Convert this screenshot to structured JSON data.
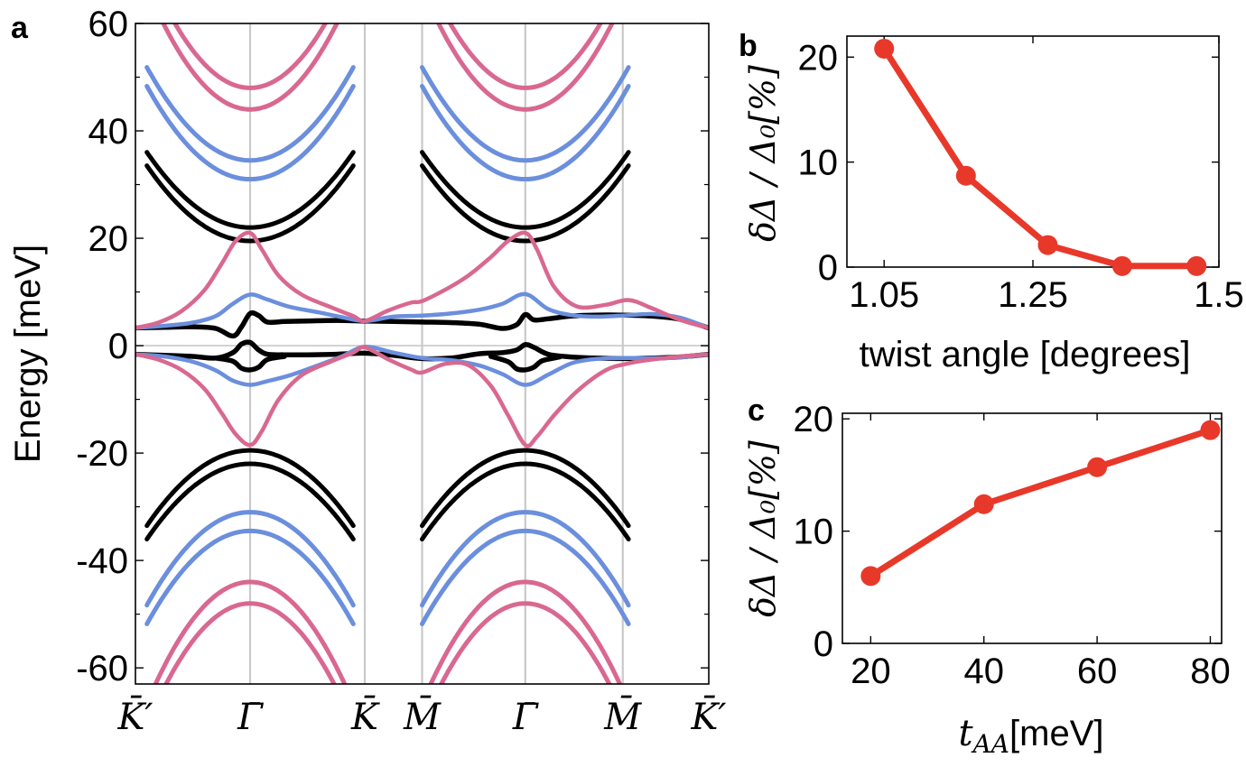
{
  "colors": {
    "black": "#000000",
    "blue": "#6b8fdd",
    "pink": "#d96890",
    "red": "#e8382a",
    "grid": "#c9c9c9"
  },
  "chart_data": [
    {
      "id": "a",
      "panel_label": "a",
      "type": "line",
      "title": "",
      "xlabel": "",
      "ylabel": "Energy [meV]",
      "ylim": [
        -63,
        60
      ],
      "yticks": [
        -60,
        -40,
        -20,
        0,
        20,
        40,
        60
      ],
      "ytick_labels": [
        "-60",
        "-40",
        "-20",
        "0",
        "20",
        "40",
        "60"
      ],
      "xlim": [
        0,
        1
      ],
      "high_symmetry_points": [
        {
          "x": 0.0,
          "label": "K̄′"
        },
        {
          "x": 0.2,
          "label": "Γ̄"
        },
        {
          "x": 0.4,
          "label": "K̄"
        },
        {
          "x": 0.5,
          "label": "M̄"
        },
        {
          "x": 0.68,
          "label": "Γ̄"
        },
        {
          "x": 0.85,
          "label": "M̄"
        },
        {
          "x": 1.0,
          "label": "K̄′"
        }
      ],
      "series": [
        {
          "name": "black flat band (upper)",
          "color": "black",
          "x": [
            0,
            0.05,
            0.1,
            0.14,
            0.17,
            0.185,
            0.2,
            0.215,
            0.23,
            0.26,
            0.3,
            0.35,
            0.4,
            0.45,
            0.5,
            0.55,
            0.6,
            0.64,
            0.665,
            0.68,
            0.695,
            0.72,
            0.76,
            0.8,
            0.85,
            0.9,
            0.95,
            1.0
          ],
          "values": [
            3.3,
            3.4,
            3.5,
            3.2,
            1.8,
            3.5,
            6.0,
            5.6,
            4.4,
            4.5,
            4.6,
            4.7,
            4.6,
            4.5,
            4.4,
            4.3,
            4.0,
            3.2,
            3.9,
            5.8,
            4.8,
            5.0,
            5.5,
            5.7,
            5.7,
            5.5,
            4.9,
            3.3
          ]
        },
        {
          "name": "black flat band (lower)",
          "color": "black",
          "x": [
            0,
            0.05,
            0.1,
            0.14,
            0.17,
            0.185,
            0.2,
            0.215,
            0.23,
            0.26,
            0.3,
            0.35,
            0.4,
            0.45,
            0.5,
            0.55,
            0.6,
            0.64,
            0.665,
            0.68,
            0.695,
            0.72,
            0.76,
            0.8,
            0.85,
            0.9,
            0.95,
            1.0
          ],
          "values": [
            -1.6,
            -1.8,
            -2.0,
            -2.3,
            -1.3,
            0.3,
            0.6,
            -0.8,
            -1.6,
            -1.7,
            -1.7,
            -1.6,
            -1.4,
            -1.8,
            -2.4,
            -2.3,
            -1.5,
            -1.3,
            -0.8,
            0.2,
            -0.3,
            -1.6,
            -2.1,
            -2.3,
            -2.4,
            -2.3,
            -2.1,
            -1.6
          ]
        },
        {
          "name": "black band dip (lower)",
          "color": "black",
          "x": [
            0.14,
            0.17,
            0.185,
            0.2,
            0.215,
            0.23,
            0.26
          ],
          "values": [
            -2.3,
            -2.9,
            -4.2,
            -4.5,
            -4.0,
            -2.6,
            -2.0
          ]
        },
        {
          "name": "black band dip (lower, 2)",
          "color": "black",
          "x": [
            0.62,
            0.65,
            0.665,
            0.68,
            0.695,
            0.71,
            0.74
          ],
          "values": [
            -2.0,
            -3.0,
            -4.3,
            -4.5,
            -4.0,
            -2.8,
            -2.1
          ]
        },
        {
          "name": "blue flat band (upper)",
          "color": "blue",
          "x": [
            0,
            0.05,
            0.1,
            0.14,
            0.17,
            0.2,
            0.23,
            0.27,
            0.32,
            0.36,
            0.4,
            0.45,
            0.5,
            0.55,
            0.6,
            0.64,
            0.68,
            0.72,
            0.76,
            0.8,
            0.85,
            0.9,
            0.95,
            1.0
          ],
          "values": [
            3.3,
            3.7,
            4.3,
            5.5,
            7.8,
            9.5,
            8.6,
            7.2,
            6.2,
            5.3,
            4.6,
            5.4,
            5.6,
            6.0,
            6.7,
            7.8,
            9.6,
            6.8,
            5.7,
            5.4,
            5.6,
            5.9,
            5.2,
            3.3
          ]
        },
        {
          "name": "blue flat band (lower)",
          "color": "blue",
          "x": [
            0,
            0.05,
            0.1,
            0.14,
            0.17,
            0.2,
            0.23,
            0.27,
            0.32,
            0.36,
            0.4,
            0.45,
            0.5,
            0.55,
            0.6,
            0.64,
            0.68,
            0.72,
            0.76,
            0.8,
            0.85,
            0.9,
            0.95,
            1.0
          ],
          "values": [
            -1.6,
            -2.0,
            -3.0,
            -4.6,
            -6.5,
            -7.3,
            -6.6,
            -5.5,
            -3.6,
            -2.0,
            -0.2,
            -1.3,
            -2.3,
            -2.7,
            -3.7,
            -5.3,
            -7.3,
            -5.4,
            -3.3,
            -2.5,
            -2.3,
            -2.3,
            -2.2,
            -1.6
          ]
        },
        {
          "name": "pink flat band (upper)",
          "color": "pink",
          "x": [
            0,
            0.04,
            0.08,
            0.12,
            0.15,
            0.175,
            0.2,
            0.22,
            0.25,
            0.29,
            0.34,
            0.38,
            0.4,
            0.44,
            0.48,
            0.5,
            0.54,
            0.58,
            0.62,
            0.65,
            0.68,
            0.7,
            0.73,
            0.77,
            0.82,
            0.86,
            0.9,
            0.95,
            1.0
          ],
          "values": [
            3.3,
            4.3,
            6.4,
            10.3,
            15.2,
            19.5,
            21.0,
            18.0,
            13.0,
            9.5,
            7.2,
            5.5,
            4.6,
            6.5,
            8.0,
            8.3,
            10.4,
            13.0,
            16.5,
            19.5,
            21.0,
            18.0,
            11.0,
            7.3,
            7.6,
            8.5,
            7.0,
            4.8,
            3.3
          ]
        },
        {
          "name": "pink flat band (lower)",
          "color": "pink",
          "x": [
            0,
            0.04,
            0.08,
            0.12,
            0.15,
            0.175,
            0.2,
            0.22,
            0.25,
            0.29,
            0.34,
            0.38,
            0.4,
            0.44,
            0.48,
            0.5,
            0.54,
            0.58,
            0.62,
            0.65,
            0.68,
            0.7,
            0.73,
            0.77,
            0.82,
            0.86,
            0.9,
            0.95,
            1.0
          ],
          "values": [
            -1.6,
            -2.6,
            -4.5,
            -8.0,
            -12.5,
            -16.5,
            -18.5,
            -16.0,
            -10.0,
            -5.5,
            -3.0,
            -1.3,
            -0.3,
            -2.5,
            -4.4,
            -5.0,
            -3.4,
            -3.6,
            -7.5,
            -13.0,
            -18.5,
            -17.0,
            -13.0,
            -8.5,
            -4.6,
            -3.3,
            -2.6,
            -2.0,
            -1.6
          ]
        }
      ],
      "remote_bands": [
        {
          "center": 0.2,
          "color": "black",
          "min": 19.5,
          "parabola": true
        },
        {
          "center": 0.2,
          "color": "black",
          "min": 22.0,
          "parabola": true
        },
        {
          "center": 0.2,
          "color": "blue",
          "min": 31.0,
          "parabola": true
        },
        {
          "center": 0.2,
          "color": "blue",
          "min": 34.5,
          "parabola": true
        },
        {
          "center": 0.2,
          "color": "pink",
          "min": 44.0,
          "parabola": true
        },
        {
          "center": 0.2,
          "color": "pink",
          "min": 48.0,
          "parabola": true
        },
        {
          "center": 0.68,
          "color": "black",
          "min": 19.5,
          "parabola": true
        },
        {
          "center": 0.68,
          "color": "black",
          "min": 22.0,
          "parabola": true
        },
        {
          "center": 0.68,
          "color": "blue",
          "min": 31.0,
          "parabola": true
        },
        {
          "center": 0.68,
          "color": "blue",
          "min": 34.5,
          "parabola": true
        },
        {
          "center": 0.68,
          "color": "pink",
          "min": 44.0,
          "parabola": true
        },
        {
          "center": 0.68,
          "color": "pink",
          "min": 48.0,
          "parabola": true
        }
      ]
    },
    {
      "id": "b",
      "panel_label": "b",
      "type": "line",
      "title": "",
      "xlabel": "twist angle [degrees]",
      "ylabel": "δΔ / Δ₀[%]",
      "xlim": [
        1.0,
        1.5
      ],
      "ylim": [
        0,
        22
      ],
      "xticks": [
        1.05,
        1.25,
        1.5
      ],
      "xtick_labels": [
        "1.05",
        "1.25",
        "1.5"
      ],
      "yticks": [
        0,
        10,
        20
      ],
      "ytick_labels": [
        "0",
        "10",
        "20"
      ],
      "x": [
        1.05,
        1.16,
        1.27,
        1.37,
        1.47
      ],
      "values": [
        20.8,
        8.7,
        2.1,
        0.1,
        0.1
      ]
    },
    {
      "id": "c",
      "panel_label": "c",
      "type": "line",
      "title": "",
      "xlabel_var": "t",
      "xlabel_sub": "AA",
      "xlabel_unit": "[meV]",
      "ylabel": "δΔ / Δ₀[%]",
      "xlim": [
        15,
        82
      ],
      "ylim": [
        0,
        20.5
      ],
      "xticks": [
        20,
        40,
        60,
        80
      ],
      "xtick_labels": [
        "20",
        "40",
        "60",
        "80"
      ],
      "yticks": [
        0,
        10,
        20
      ],
      "ytick_labels": [
        "0",
        "10",
        "20"
      ],
      "x": [
        20,
        40,
        60,
        80
      ],
      "values": [
        6.0,
        12.4,
        15.7,
        19.0
      ]
    }
  ]
}
